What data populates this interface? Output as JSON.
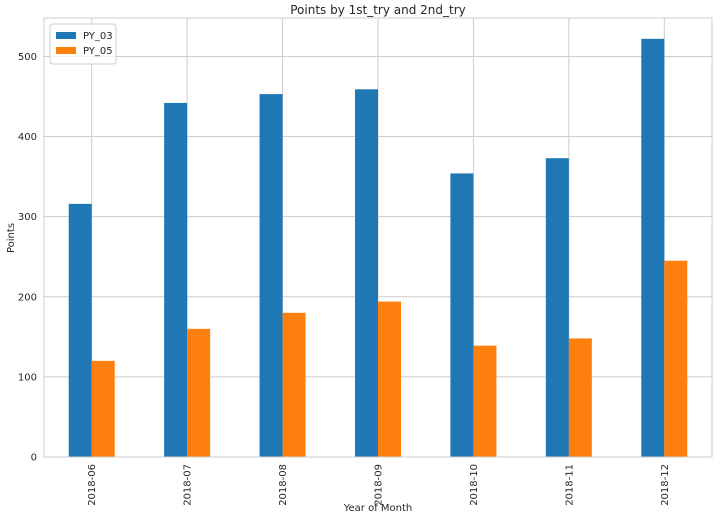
{
  "chart_data": {
    "type": "bar",
    "title": "Points by 1st_try and 2nd_try",
    "xlabel": "Year of Month",
    "ylabel": "Points",
    "categories": [
      "2018-06",
      "2018-07",
      "2018-08",
      "2018-09",
      "2018-10",
      "2018-11",
      "2018-12"
    ],
    "series": [
      {
        "name": "PY_03",
        "color": "#1f77b4",
        "values": [
          316,
          442,
          453,
          459,
          354,
          373,
          522
        ]
      },
      {
        "name": "PY_05",
        "color": "#ff7f0e",
        "values": [
          120,
          160,
          180,
          194,
          139,
          148,
          245
        ]
      }
    ],
    "ylim": [
      0,
      548
    ],
    "yticks": [
      0,
      100,
      200,
      300,
      400,
      500
    ],
    "grid": true,
    "legend_position": "top-left"
  }
}
